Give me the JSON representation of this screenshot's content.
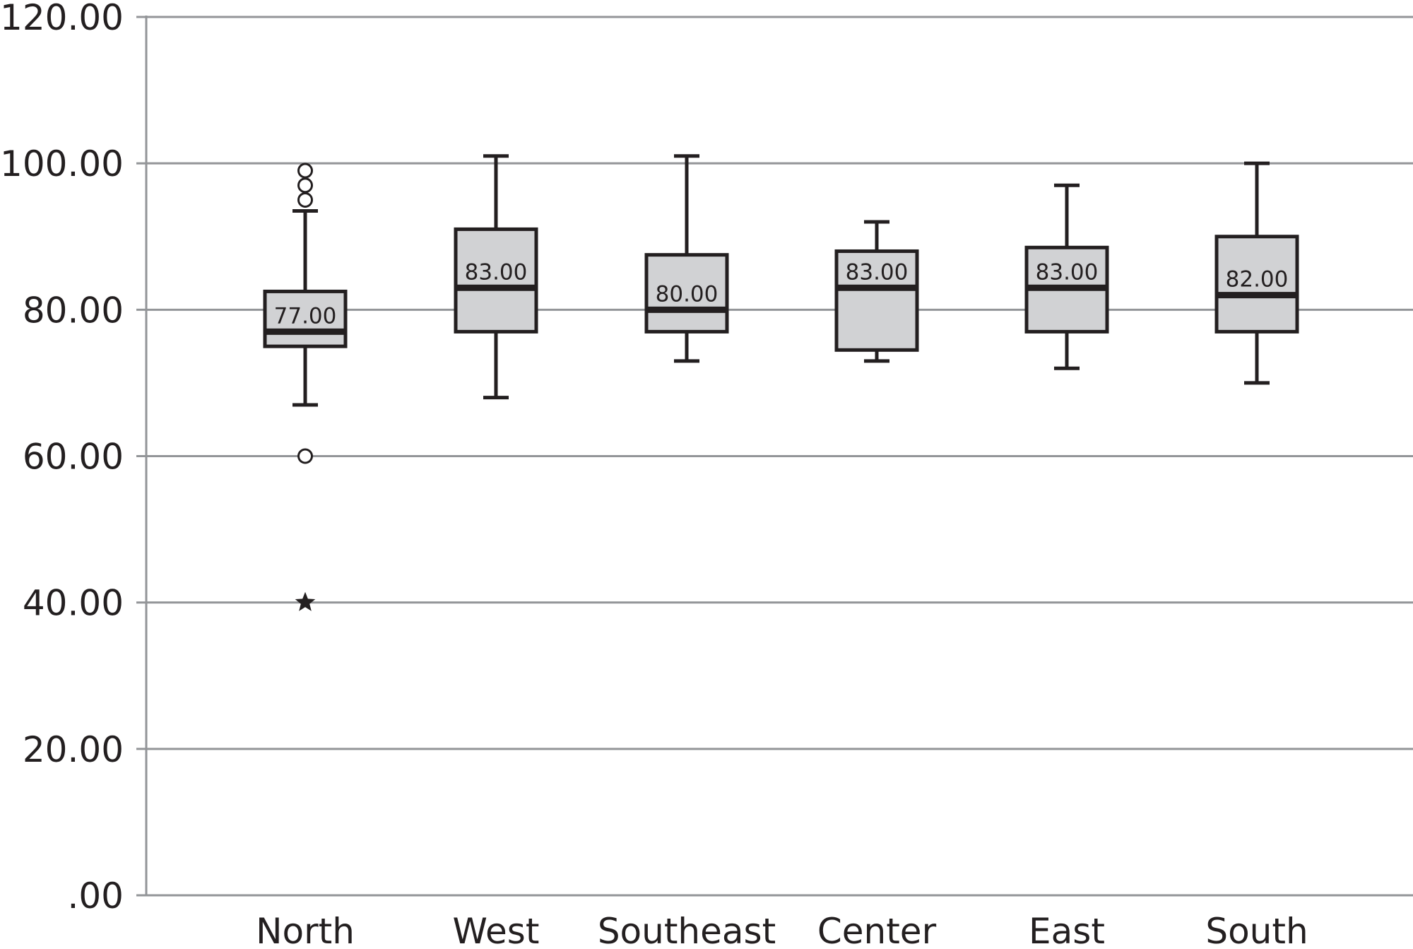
{
  "chart_data": {
    "type": "boxplot",
    "title": "",
    "xlabel": "",
    "ylabel": "",
    "ylim": [
      0,
      120
    ],
    "yticks": [
      0,
      20,
      40,
      60,
      80,
      100,
      120
    ],
    "ytick_labels": [
      ".00",
      "20.00",
      "40.00",
      "60.00",
      "80.00",
      "100.00",
      "120.00"
    ],
    "grid": true,
    "categories": [
      "North",
      "West",
      "Southeast",
      "Center",
      "East",
      "South"
    ],
    "boxes": [
      {
        "category": "North",
        "whisker_low": 67,
        "q1": 75,
        "median": 77,
        "q3": 82.5,
        "whisker_high": 93.5,
        "median_label": "77.00",
        "outliers": [
          99,
          97,
          95,
          60
        ],
        "extremes": [
          40
        ]
      },
      {
        "category": "West",
        "whisker_low": 68,
        "q1": 77,
        "median": 83,
        "q3": 91,
        "whisker_high": 101,
        "median_label": "83.00",
        "outliers": [],
        "extremes": []
      },
      {
        "category": "Southeast",
        "whisker_low": 73,
        "q1": 77,
        "median": 80,
        "q3": 87.5,
        "whisker_high": 101,
        "median_label": "80.00",
        "outliers": [],
        "extremes": []
      },
      {
        "category": "Center",
        "whisker_low": 73,
        "q1": 74.5,
        "median": 83,
        "q3": 88,
        "whisker_high": 92,
        "median_label": "83.00",
        "outliers": [],
        "extremes": []
      },
      {
        "category": "East",
        "whisker_low": 72,
        "q1": 77,
        "median": 83,
        "q3": 88.5,
        "whisker_high": 97,
        "median_label": "83.00",
        "outliers": [],
        "extremes": []
      },
      {
        "category": "South",
        "whisker_low": 70,
        "q1": 77,
        "median": 82,
        "q3": 90,
        "whisker_high": 100,
        "median_label": "82.00",
        "outliers": [],
        "extremes": []
      }
    ],
    "colors": {
      "box_fill": "#d1d2d4",
      "stroke": "#231f20",
      "grid": "#939598",
      "axis": "#939598"
    }
  }
}
